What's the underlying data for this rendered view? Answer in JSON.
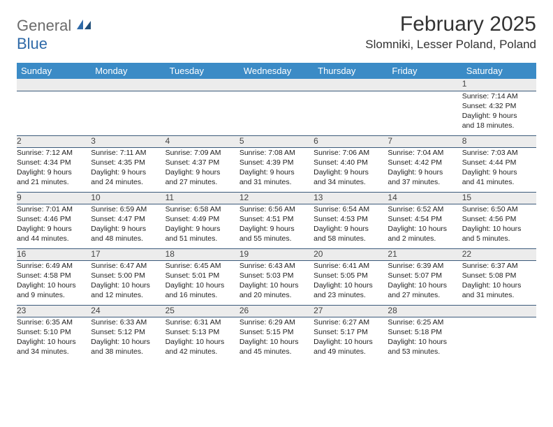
{
  "brand": {
    "word1": "General",
    "word2": "Blue"
  },
  "header": {
    "month_title": "February 2025",
    "location": "Slomniki, Lesser Poland, Poland"
  },
  "dow": [
    "Sunday",
    "Monday",
    "Tuesday",
    "Wednesday",
    "Thursday",
    "Friday",
    "Saturday"
  ],
  "colors": {
    "header_bg": "#3b8bc6",
    "header_text": "#ffffff",
    "daynum_bg": "#ececec",
    "rule": "#3b5a7a",
    "logo_grey": "#6b6b6b",
    "logo_blue": "#2f6aa8"
  },
  "weeks": [
    [
      null,
      null,
      null,
      null,
      null,
      null,
      {
        "n": "1",
        "sunrise": "7:14 AM",
        "sunset": "4:32 PM",
        "dl1": "Daylight: 9 hours",
        "dl2": "and 18 minutes."
      }
    ],
    [
      {
        "n": "2",
        "sunrise": "7:12 AM",
        "sunset": "4:34 PM",
        "dl1": "Daylight: 9 hours",
        "dl2": "and 21 minutes."
      },
      {
        "n": "3",
        "sunrise": "7:11 AM",
        "sunset": "4:35 PM",
        "dl1": "Daylight: 9 hours",
        "dl2": "and 24 minutes."
      },
      {
        "n": "4",
        "sunrise": "7:09 AM",
        "sunset": "4:37 PM",
        "dl1": "Daylight: 9 hours",
        "dl2": "and 27 minutes."
      },
      {
        "n": "5",
        "sunrise": "7:08 AM",
        "sunset": "4:39 PM",
        "dl1": "Daylight: 9 hours",
        "dl2": "and 31 minutes."
      },
      {
        "n": "6",
        "sunrise": "7:06 AM",
        "sunset": "4:40 PM",
        "dl1": "Daylight: 9 hours",
        "dl2": "and 34 minutes."
      },
      {
        "n": "7",
        "sunrise": "7:04 AM",
        "sunset": "4:42 PM",
        "dl1": "Daylight: 9 hours",
        "dl2": "and 37 minutes."
      },
      {
        "n": "8",
        "sunrise": "7:03 AM",
        "sunset": "4:44 PM",
        "dl1": "Daylight: 9 hours",
        "dl2": "and 41 minutes."
      }
    ],
    [
      {
        "n": "9",
        "sunrise": "7:01 AM",
        "sunset": "4:46 PM",
        "dl1": "Daylight: 9 hours",
        "dl2": "and 44 minutes."
      },
      {
        "n": "10",
        "sunrise": "6:59 AM",
        "sunset": "4:47 PM",
        "dl1": "Daylight: 9 hours",
        "dl2": "and 48 minutes."
      },
      {
        "n": "11",
        "sunrise": "6:58 AM",
        "sunset": "4:49 PM",
        "dl1": "Daylight: 9 hours",
        "dl2": "and 51 minutes."
      },
      {
        "n": "12",
        "sunrise": "6:56 AM",
        "sunset": "4:51 PM",
        "dl1": "Daylight: 9 hours",
        "dl2": "and 55 minutes."
      },
      {
        "n": "13",
        "sunrise": "6:54 AM",
        "sunset": "4:53 PM",
        "dl1": "Daylight: 9 hours",
        "dl2": "and 58 minutes."
      },
      {
        "n": "14",
        "sunrise": "6:52 AM",
        "sunset": "4:54 PM",
        "dl1": "Daylight: 10 hours",
        "dl2": "and 2 minutes."
      },
      {
        "n": "15",
        "sunrise": "6:50 AM",
        "sunset": "4:56 PM",
        "dl1": "Daylight: 10 hours",
        "dl2": "and 5 minutes."
      }
    ],
    [
      {
        "n": "16",
        "sunrise": "6:49 AM",
        "sunset": "4:58 PM",
        "dl1": "Daylight: 10 hours",
        "dl2": "and 9 minutes."
      },
      {
        "n": "17",
        "sunrise": "6:47 AM",
        "sunset": "5:00 PM",
        "dl1": "Daylight: 10 hours",
        "dl2": "and 12 minutes."
      },
      {
        "n": "18",
        "sunrise": "6:45 AM",
        "sunset": "5:01 PM",
        "dl1": "Daylight: 10 hours",
        "dl2": "and 16 minutes."
      },
      {
        "n": "19",
        "sunrise": "6:43 AM",
        "sunset": "5:03 PM",
        "dl1": "Daylight: 10 hours",
        "dl2": "and 20 minutes."
      },
      {
        "n": "20",
        "sunrise": "6:41 AM",
        "sunset": "5:05 PM",
        "dl1": "Daylight: 10 hours",
        "dl2": "and 23 minutes."
      },
      {
        "n": "21",
        "sunrise": "6:39 AM",
        "sunset": "5:07 PM",
        "dl1": "Daylight: 10 hours",
        "dl2": "and 27 minutes."
      },
      {
        "n": "22",
        "sunrise": "6:37 AM",
        "sunset": "5:08 PM",
        "dl1": "Daylight: 10 hours",
        "dl2": "and 31 minutes."
      }
    ],
    [
      {
        "n": "23",
        "sunrise": "6:35 AM",
        "sunset": "5:10 PM",
        "dl1": "Daylight: 10 hours",
        "dl2": "and 34 minutes."
      },
      {
        "n": "24",
        "sunrise": "6:33 AM",
        "sunset": "5:12 PM",
        "dl1": "Daylight: 10 hours",
        "dl2": "and 38 minutes."
      },
      {
        "n": "25",
        "sunrise": "6:31 AM",
        "sunset": "5:13 PM",
        "dl1": "Daylight: 10 hours",
        "dl2": "and 42 minutes."
      },
      {
        "n": "26",
        "sunrise": "6:29 AM",
        "sunset": "5:15 PM",
        "dl1": "Daylight: 10 hours",
        "dl2": "and 45 minutes."
      },
      {
        "n": "27",
        "sunrise": "6:27 AM",
        "sunset": "5:17 PM",
        "dl1": "Daylight: 10 hours",
        "dl2": "and 49 minutes."
      },
      {
        "n": "28",
        "sunrise": "6:25 AM",
        "sunset": "5:18 PM",
        "dl1": "Daylight: 10 hours",
        "dl2": "and 53 minutes."
      },
      null
    ]
  ],
  "labels": {
    "sunrise": "Sunrise: ",
    "sunset": "Sunset: "
  }
}
